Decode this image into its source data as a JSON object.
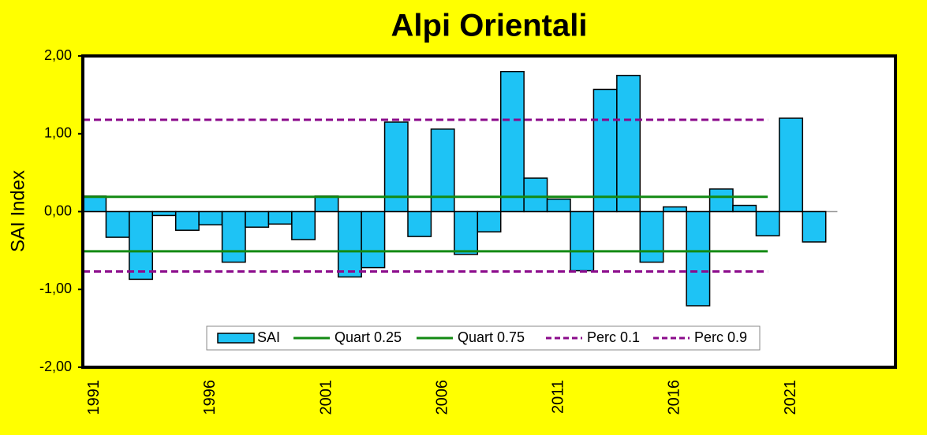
{
  "chart_data": {
    "type": "bar",
    "title": "Alpi Orientali",
    "y_label": "SAI Index",
    "categories": [
      "1991",
      null,
      null,
      null,
      null,
      "1996",
      null,
      null,
      null,
      null,
      "2001",
      null,
      null,
      null,
      null,
      "2006",
      null,
      null,
      null,
      null,
      "2011",
      null,
      null,
      null,
      null,
      "2016",
      null,
      null,
      null,
      null,
      "2021",
      null,
      null,
      null,
      null
    ],
    "series": [
      {
        "name": "SAI",
        "color": "#1ec3f5",
        "values": [
          0.2,
          -0.33,
          -0.87,
          -0.05,
          -0.24,
          -0.17,
          -0.65,
          -0.2,
          -0.16,
          -0.36,
          0.2,
          -0.84,
          -0.72,
          1.15,
          -0.32,
          1.06,
          -0.55,
          -0.26,
          1.8,
          0.43,
          0.16,
          -0.76,
          1.57,
          1.75,
          -0.65,
          0.06,
          -1.21,
          0.29,
          0.08,
          -0.31,
          1.2,
          -0.39,
          null,
          null,
          null
        ]
      }
    ],
    "reference_lines": [
      {
        "name": "Quart 0.25",
        "value": -0.51,
        "color": "#138a13",
        "dashed": false
      },
      {
        "name": "Quart 0.75",
        "value": 0.19,
        "color": "#138a13",
        "dashed": false
      },
      {
        "name": "Perc 0.1",
        "value": -0.77,
        "color": "#8b0a8b",
        "dashed": true
      },
      {
        "name": "Perc 0.9",
        "value": 1.18,
        "color": "#8b0a8b",
        "dashed": true
      }
    ],
    "ylim": [
      -2,
      2
    ],
    "yticks": [
      {
        "value": -2,
        "label": "-2,00"
      },
      {
        "value": -1,
        "label": "-1,00"
      },
      {
        "value": 0,
        "label": "0,00"
      },
      {
        "value": 1,
        "label": "1,00"
      },
      {
        "value": 2,
        "label": "2,00"
      }
    ]
  }
}
